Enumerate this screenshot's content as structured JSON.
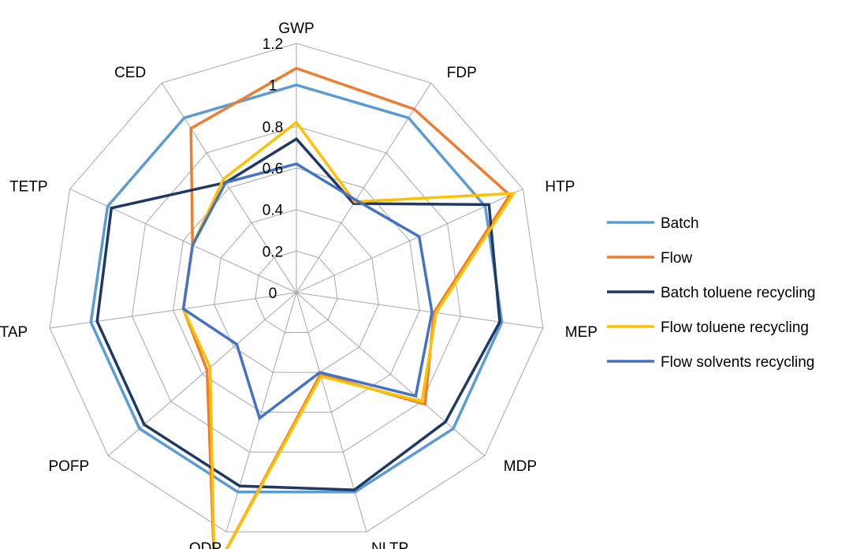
{
  "chart_data": {
    "type": "radar",
    "axes": [
      "GWP",
      "FDP",
      "HTP",
      "MEP",
      "MDP",
      "NLTP",
      "ODP",
      "POFP",
      "TAP",
      "TETP",
      "CED"
    ],
    "rlim": [
      0,
      1.2
    ],
    "ticks": [
      "0",
      "0.2",
      "0.4",
      "0.6",
      "0.8",
      "1",
      "1.2"
    ],
    "tick_values": [
      0,
      0.2,
      0.4,
      0.6,
      0.8,
      1.0,
      1.2
    ],
    "grid": true,
    "legend_position": "right",
    "series": [
      {
        "name": "Batch",
        "color": "#5b9bd5",
        "values": [
          1.0,
          1.0,
          1.0,
          1.0,
          1.0,
          1.0,
          1.0,
          1.0,
          1.0,
          1.0,
          1.0
        ]
      },
      {
        "name": "Flow",
        "color": "#ed7d31",
        "values": [
          1.08,
          1.05,
          1.13,
          0.67,
          0.82,
          0.41,
          1.4,
          0.57,
          0.55,
          0.55,
          0.94
        ]
      },
      {
        "name": "Batch toluene recycling",
        "color": "#1f3864",
        "values": [
          0.74,
          0.51,
          1.02,
          0.99,
          0.95,
          0.99,
          0.97,
          0.97,
          0.97,
          0.98,
          0.63
        ]
      },
      {
        "name": "Flow toluene recycling",
        "color": "#ffc000",
        "values": [
          0.82,
          0.52,
          1.15,
          0.68,
          0.8,
          0.42,
          1.4,
          0.55,
          0.55,
          0.55,
          0.65
        ]
      },
      {
        "name": "Flow solvents recycling",
        "color": "#4472c4",
        "values": [
          0.62,
          0.53,
          0.65,
          0.66,
          0.76,
          0.4,
          0.63,
          0.38,
          0.55,
          0.55,
          0.63
        ]
      }
    ]
  }
}
